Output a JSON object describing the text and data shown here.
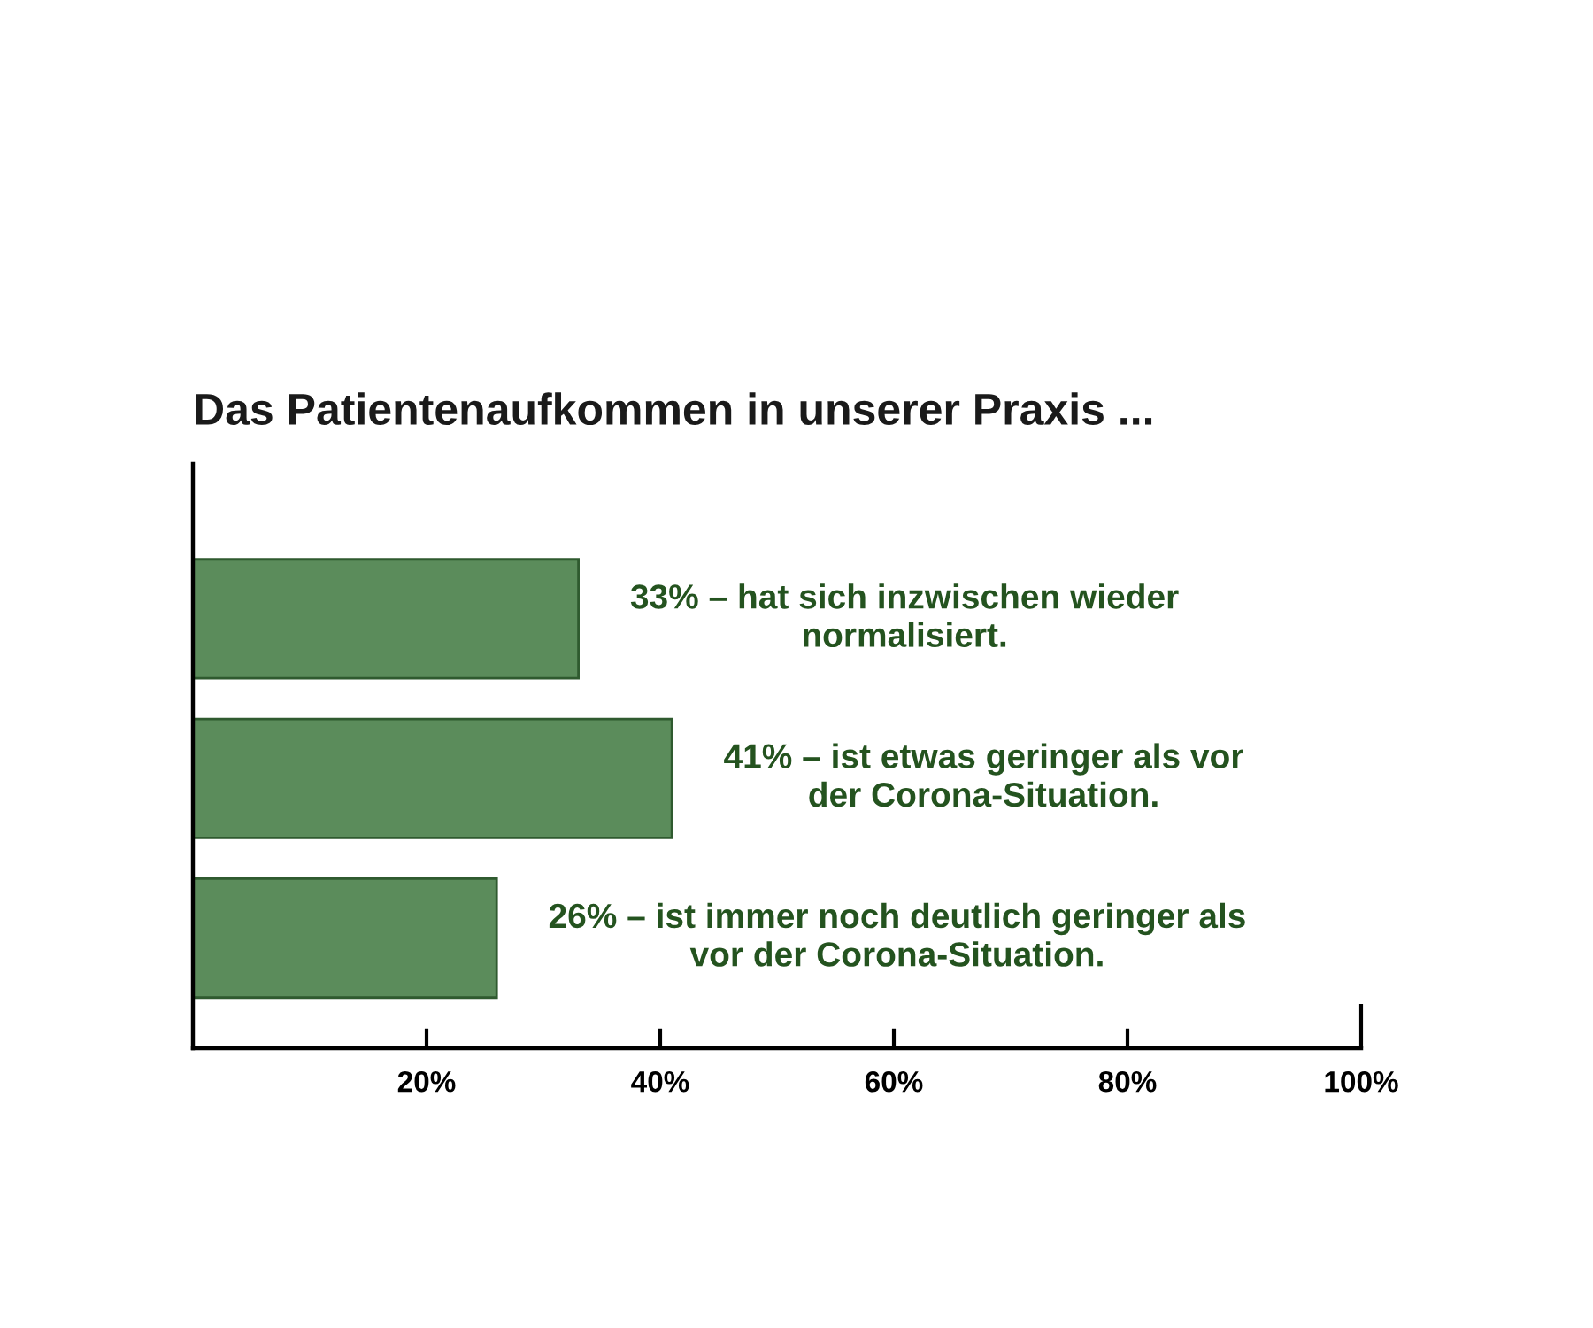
{
  "chart_data": {
    "type": "bar",
    "orientation": "horizontal",
    "title": "Das Patientenaufkommen in unserer Praxis ...",
    "categories": [
      null,
      null,
      null
    ],
    "values": [
      33,
      41,
      26
    ],
    "color": "#5b8c5b",
    "value_labels": [
      "33% – hat sich inzwischen wieder\nnormalisiert.",
      "41% – ist etwas geringer als vor\nder Corona-Situation.",
      "26% – ist immer noch deutlich geringer als\nvor der Corona-Situation."
    ],
    "xlim": [
      0,
      100
    ],
    "xticks": [
      {
        "value": 20,
        "label": "20%"
      },
      {
        "value": 40,
        "label": "40%"
      },
      {
        "value": 60,
        "label": "60%"
      },
      {
        "value": 80,
        "label": "80%"
      },
      {
        "value": 100,
        "label": "100%"
      }
    ]
  }
}
